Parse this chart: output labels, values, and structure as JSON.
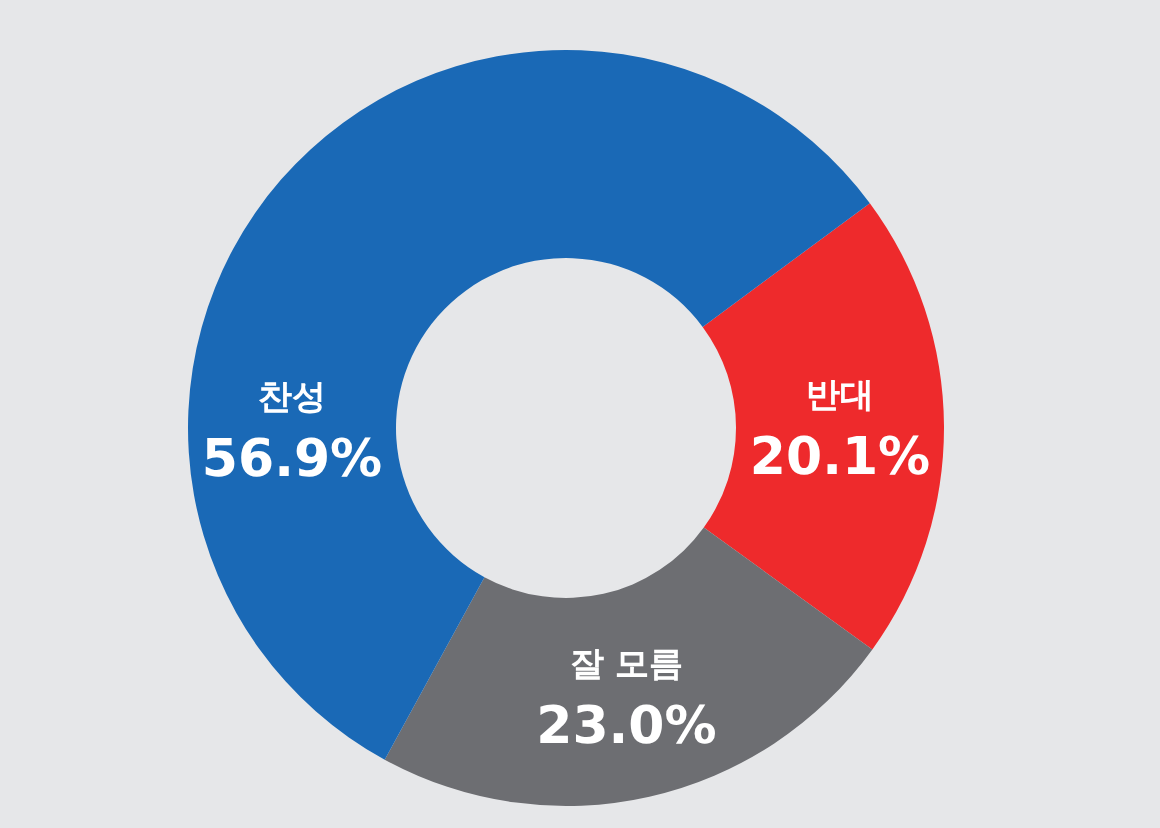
{
  "chart_data": {
    "type": "donut",
    "categories": [
      "반대",
      "잘 모름",
      "찬성"
    ],
    "values": [
      20.1,
      23.0,
      56.9
    ],
    "value_labels": [
      "20.1%",
      "23.0%",
      "56.9%"
    ],
    "colors": [
      "#ee2a2c",
      "#6d6e72",
      "#1a69b6"
    ]
  }
}
